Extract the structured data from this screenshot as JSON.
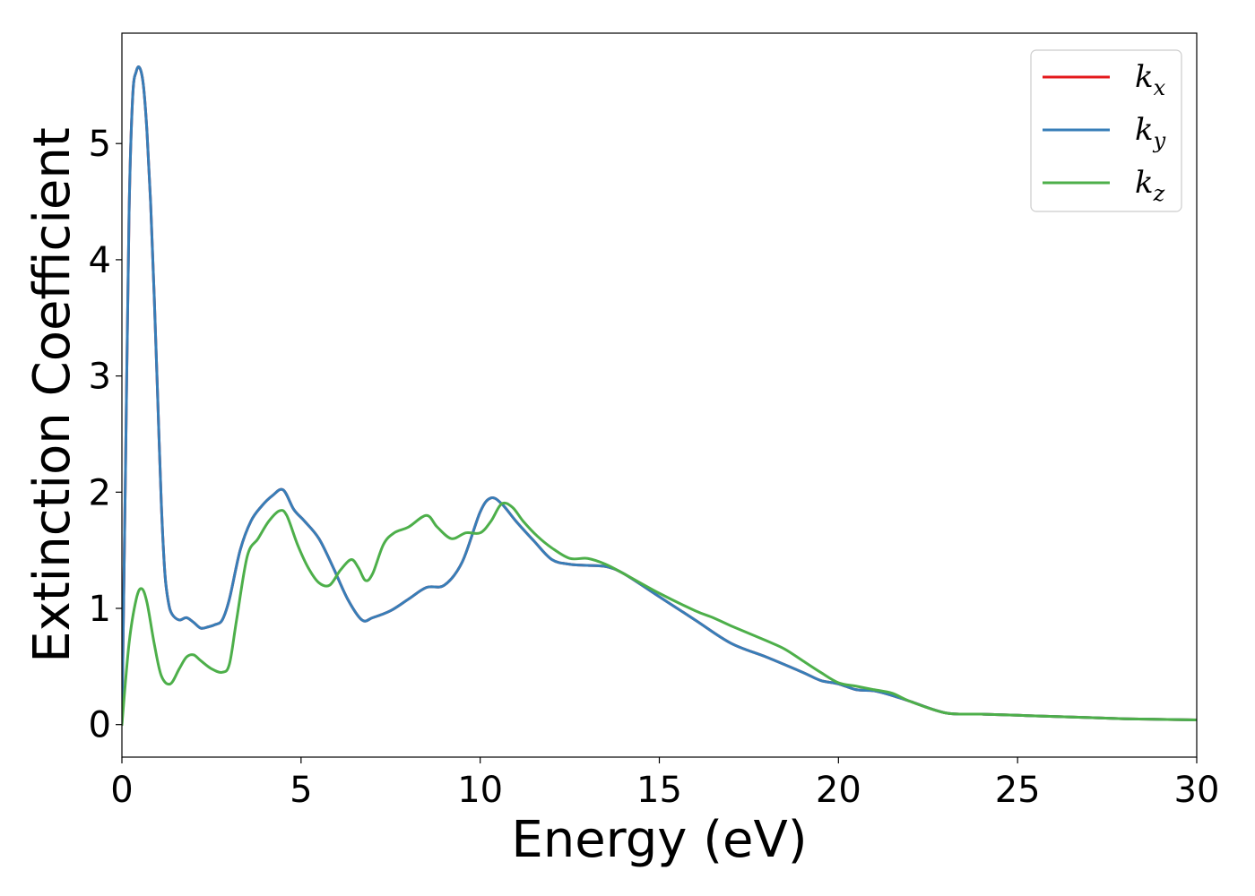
{
  "chart_data": {
    "type": "line",
    "xlabel": "Energy (eV)",
    "ylabel": "Extinction Coefficient",
    "xlim": [
      0,
      30
    ],
    "ylim": [
      -0.28,
      5.95
    ],
    "xticks": [
      0,
      5,
      10,
      15,
      20,
      25,
      30
    ],
    "yticks": [
      0,
      1,
      2,
      3,
      4,
      5
    ],
    "grid": false,
    "legend_position": "top-right",
    "series": [
      {
        "name": "k",
        "subscript": "x",
        "color": "#e41a1c",
        "x": [
          0,
          0.1,
          0.2,
          0.3,
          0.4,
          0.5,
          0.6,
          0.7,
          0.8,
          0.9,
          1.0,
          1.1,
          1.2,
          1.3,
          1.4,
          1.6,
          1.8,
          2.0,
          2.2,
          2.4,
          2.6,
          2.8,
          3.0,
          3.3,
          3.6,
          3.9,
          4.2,
          4.5,
          4.8,
          5.1,
          5.5,
          5.9,
          6.3,
          6.7,
          7.0,
          7.5,
          8.0,
          8.5,
          9.0,
          9.5,
          10.0,
          10.3,
          10.6,
          11.0,
          11.5,
          12.0,
          12.5,
          13.0,
          13.5,
          14.0,
          15.0,
          16.0,
          17.0,
          18.0,
          19.0,
          19.5,
          20.0,
          20.5,
          21.0,
          21.5,
          22.0,
          23.0,
          24.0,
          25.0,
          26.0,
          27.0,
          28.0,
          29.0,
          30.0
        ],
        "values": [
          0.0,
          2.2,
          4.4,
          5.4,
          5.62,
          5.65,
          5.5,
          5.1,
          4.5,
          3.7,
          2.8,
          1.9,
          1.3,
          1.05,
          0.95,
          0.9,
          0.92,
          0.88,
          0.83,
          0.84,
          0.86,
          0.9,
          1.08,
          1.5,
          1.75,
          1.88,
          1.97,
          2.02,
          1.85,
          1.75,
          1.6,
          1.35,
          1.08,
          0.9,
          0.92,
          0.98,
          1.08,
          1.18,
          1.2,
          1.4,
          1.83,
          1.95,
          1.9,
          1.75,
          1.58,
          1.42,
          1.38,
          1.37,
          1.36,
          1.3,
          1.1,
          0.9,
          0.7,
          0.58,
          0.45,
          0.38,
          0.35,
          0.3,
          0.29,
          0.25,
          0.2,
          0.1,
          0.09,
          0.08,
          0.07,
          0.06,
          0.05,
          0.045,
          0.04
        ]
      },
      {
        "name": "k",
        "subscript": "y",
        "color": "#377eb8",
        "x": [
          0,
          0.1,
          0.2,
          0.3,
          0.4,
          0.5,
          0.6,
          0.7,
          0.8,
          0.9,
          1.0,
          1.1,
          1.2,
          1.3,
          1.4,
          1.6,
          1.8,
          2.0,
          2.2,
          2.4,
          2.6,
          2.8,
          3.0,
          3.3,
          3.6,
          3.9,
          4.2,
          4.5,
          4.8,
          5.1,
          5.5,
          5.9,
          6.3,
          6.7,
          7.0,
          7.5,
          8.0,
          8.5,
          9.0,
          9.5,
          10.0,
          10.3,
          10.6,
          11.0,
          11.5,
          12.0,
          12.5,
          13.0,
          13.5,
          14.0,
          15.0,
          16.0,
          17.0,
          18.0,
          19.0,
          19.5,
          20.0,
          20.5,
          21.0,
          21.5,
          22.0,
          23.0,
          24.0,
          25.0,
          26.0,
          27.0,
          28.0,
          29.0,
          30.0
        ],
        "values": [
          0.0,
          2.2,
          4.4,
          5.4,
          5.62,
          5.65,
          5.5,
          5.1,
          4.5,
          3.7,
          2.8,
          1.9,
          1.3,
          1.05,
          0.95,
          0.9,
          0.92,
          0.88,
          0.83,
          0.84,
          0.86,
          0.9,
          1.08,
          1.5,
          1.75,
          1.88,
          1.97,
          2.02,
          1.85,
          1.75,
          1.6,
          1.35,
          1.08,
          0.9,
          0.92,
          0.98,
          1.08,
          1.18,
          1.2,
          1.4,
          1.83,
          1.95,
          1.9,
          1.75,
          1.58,
          1.42,
          1.38,
          1.37,
          1.36,
          1.3,
          1.1,
          0.9,
          0.7,
          0.58,
          0.45,
          0.38,
          0.35,
          0.3,
          0.29,
          0.25,
          0.2,
          0.1,
          0.09,
          0.08,
          0.07,
          0.06,
          0.05,
          0.045,
          0.04
        ]
      },
      {
        "name": "k",
        "subscript": "z",
        "color": "#4daf4a",
        "x": [
          0,
          0.2,
          0.4,
          0.55,
          0.7,
          0.9,
          1.1,
          1.35,
          1.6,
          1.8,
          2.0,
          2.2,
          2.5,
          2.8,
          3.0,
          3.2,
          3.5,
          3.8,
          4.1,
          4.4,
          4.6,
          4.9,
          5.2,
          5.5,
          5.8,
          6.1,
          6.4,
          6.6,
          6.8,
          7.0,
          7.3,
          7.6,
          8.0,
          8.5,
          8.8,
          9.2,
          9.6,
          10.0,
          10.3,
          10.6,
          10.9,
          11.2,
          11.6,
          12.0,
          12.5,
          13.0,
          13.5,
          14.0,
          15.0,
          16.0,
          16.5,
          17.0,
          18.0,
          18.5,
          19.0,
          19.5,
          20.0,
          20.5,
          21.0,
          21.5,
          22.0,
          23.0,
          24.0,
          25.0,
          26.0,
          27.0,
          28.0,
          29.0,
          30.0
        ],
        "values": [
          0.0,
          0.7,
          1.08,
          1.17,
          1.05,
          0.7,
          0.42,
          0.35,
          0.48,
          0.58,
          0.6,
          0.55,
          0.48,
          0.45,
          0.52,
          0.9,
          1.45,
          1.6,
          1.75,
          1.84,
          1.8,
          1.55,
          1.35,
          1.22,
          1.2,
          1.33,
          1.42,
          1.35,
          1.24,
          1.3,
          1.55,
          1.65,
          1.7,
          1.8,
          1.7,
          1.6,
          1.65,
          1.65,
          1.75,
          1.9,
          1.87,
          1.75,
          1.62,
          1.52,
          1.43,
          1.43,
          1.38,
          1.3,
          1.13,
          0.98,
          0.92,
          0.85,
          0.72,
          0.65,
          0.55,
          0.45,
          0.36,
          0.33,
          0.3,
          0.27,
          0.2,
          0.1,
          0.09,
          0.08,
          0.07,
          0.06,
          0.05,
          0.045,
          0.04
        ]
      }
    ]
  }
}
